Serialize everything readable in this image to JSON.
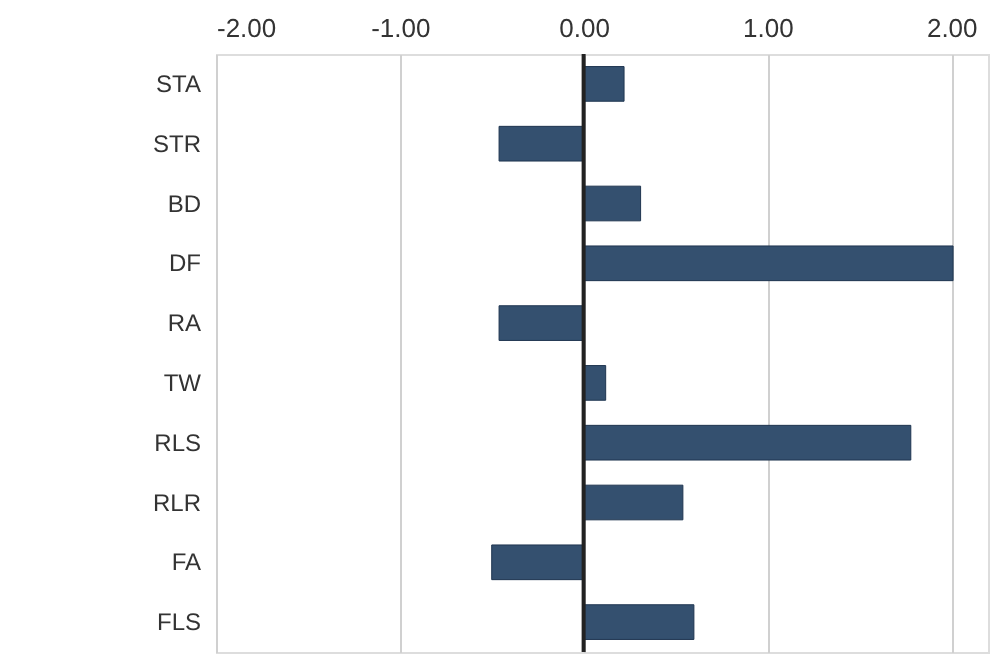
{
  "chart_data": {
    "type": "bar",
    "orientation": "horizontal",
    "categories": [
      "STA",
      "STR",
      "BD",
      "DF",
      "RA",
      "TW",
      "RLS",
      "RLR",
      "FA",
      "FLS"
    ],
    "values": [
      0.22,
      -0.46,
      0.31,
      2.01,
      -0.46,
      0.12,
      1.78,
      0.54,
      -0.5,
      0.6
    ],
    "color": "#34506f",
    "xlim": [
      -2,
      2.2
    ],
    "xticks": [
      {
        "value": -2,
        "label": "-2.00"
      },
      {
        "value": -1,
        "label": "-1.00"
      },
      {
        "value": 0,
        "label": "0.00"
      },
      {
        "value": 1,
        "label": "1.00"
      },
      {
        "value": 2,
        "label": "2.00"
      }
    ],
    "grid": "x",
    "ref_lines": [
      {
        "axis": "x",
        "value": 0,
        "color": "#222222"
      }
    ]
  }
}
